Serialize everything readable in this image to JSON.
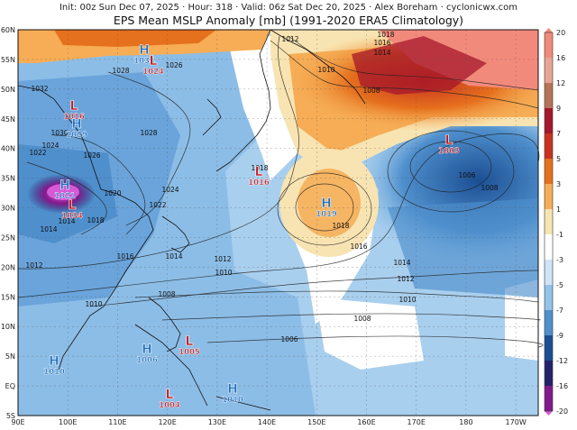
{
  "header": {
    "line1": "Init: 00z Sun Dec 07, 2025 · Hour: 318 · Valid: 06z Sat Dec 20, 2025 · Alex Boreham · cyclonicwx.com",
    "line2": "EPS Mean MSLP Anomaly [mb] (1991-2020 ERA5 Climatology)"
  },
  "map": {
    "lat_labels": [
      "60N",
      "55N",
      "50N",
      "45N",
      "40N",
      "35N",
      "30N",
      "25N",
      "20N",
      "15N",
      "10N",
      "5N",
      "EQ",
      "5S"
    ],
    "lon_labels": [
      "90E",
      "100E",
      "110E",
      "120E",
      "130E",
      "140E",
      "150E",
      "160E",
      "170E",
      "180",
      "170W"
    ]
  },
  "colorbar": {
    "ticks": [
      "20",
      "16",
      "12",
      "9",
      "7",
      "5",
      "3",
      "1",
      "-1",
      "-3",
      "-5",
      "-7",
      "-9",
      "-12",
      "-16",
      "-20"
    ],
    "colors": [
      "#f28a7c",
      "#e9a593",
      "#b77356",
      "#a5172a",
      "#c8321f",
      "#e5701d",
      "#f6ad55",
      "#f8e4b2",
      "#ffffff",
      "#cfe4f6",
      "#92c3e9",
      "#4f8fcc",
      "#1b4f94",
      "#25216b",
      "#821a8b",
      "#d65ad6"
    ]
  },
  "isobar_labels": [
    {
      "text": "1012"
    },
    {
      "text": "1018"
    },
    {
      "text": "1016"
    },
    {
      "text": "1014"
    },
    {
      "text": "1010"
    },
    {
      "text": "1008"
    },
    {
      "text": "1028"
    },
    {
      "text": "1026"
    },
    {
      "text": "1032"
    },
    {
      "text": "1030"
    },
    {
      "text": "1028"
    },
    {
      "text": "1024"
    },
    {
      "text": "1022"
    },
    {
      "text": "1026"
    },
    {
      "text": "1018"
    },
    {
      "text": "1020"
    },
    {
      "text": "1024"
    },
    {
      "text": "1022"
    },
    {
      "text": "1014"
    },
    {
      "text": "1016"
    },
    {
      "text": "1018"
    },
    {
      "text": "1018"
    },
    {
      "text": "1016"
    },
    {
      "text": "1014"
    },
    {
      "text": "1012"
    },
    {
      "text": "1014"
    },
    {
      "text": "1010"
    },
    {
      "text": "1012"
    },
    {
      "text": "1010"
    },
    {
      "text": "1008"
    },
    {
      "text": "1008"
    },
    {
      "text": "1006"
    },
    {
      "text": "1010"
    },
    {
      "text": "1006"
    },
    {
      "text": "1008"
    },
    {
      "text": "1012"
    },
    {
      "text": "1014"
    }
  ],
  "pressure_centers": [
    {
      "type": "H",
      "value": "1034"
    },
    {
      "type": "L",
      "value": "1024"
    },
    {
      "type": "L",
      "value": "1016"
    },
    {
      "type": "H",
      "value": "1029"
    },
    {
      "type": "H",
      "value": "1021"
    },
    {
      "type": "L",
      "value": "1034"
    },
    {
      "type": "L",
      "value": "1016"
    },
    {
      "type": "H",
      "value": "1019"
    },
    {
      "type": "L",
      "value": "1003"
    },
    {
      "type": "H",
      "value": "1006"
    },
    {
      "type": "L",
      "value": "1005"
    },
    {
      "type": "H",
      "value": "1010"
    },
    {
      "type": "L",
      "value": "1004"
    },
    {
      "type": "H",
      "value": "1010"
    }
  ]
}
